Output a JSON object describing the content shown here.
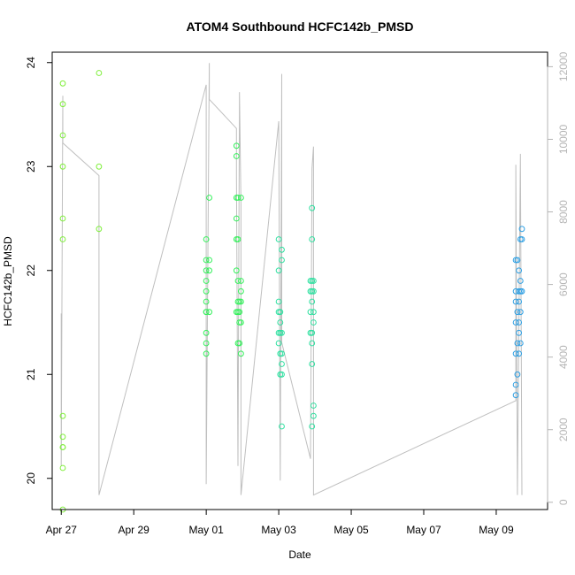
{
  "chart_data": {
    "type": "scatter",
    "title": "ATOM4 Southbound HCFC142b_PMSD",
    "xlabel": "Date",
    "ylabel": "HCFC142b_PMSD",
    "ylim": [
      19.7,
      24.1
    ],
    "y2lim": [
      -200,
      12400
    ],
    "xlim": [
      "2017-04-26 18:00",
      "2017-05-10 10:00"
    ],
    "x_ticks": [
      {
        "label": "Apr 27",
        "value": "2017-04-27"
      },
      {
        "label": "Apr 29",
        "value": "2017-04-29"
      },
      {
        "label": "May 01",
        "value": "2017-05-01"
      },
      {
        "label": "May 03",
        "value": "2017-05-03"
      },
      {
        "label": "May 05",
        "value": "2017-05-05"
      },
      {
        "label": "May 07",
        "value": "2017-05-07"
      },
      {
        "label": "May 09",
        "value": "2017-05-09"
      }
    ],
    "y_ticks": [
      "20",
      "21",
      "22",
      "23",
      "24"
    ],
    "y2_ticks": [
      "0",
      "2000",
      "4000",
      "6000",
      "8000",
      "10000",
      "12000"
    ],
    "grid": false,
    "legend": "none",
    "colors": {
      "axis": "#000000",
      "right_axis": "#b5b5b5",
      "altitude_line": "#bfbfbf",
      "early_points": "#7fef3a",
      "mid_points": "#33f05a",
      "late_mid_points": "#2ee0a0",
      "final_points": "#2d9fe3"
    },
    "series": [
      {
        "kind": "points",
        "color": "#7fef3a",
        "points": [
          {
            "x": "2017-04-27 01:00",
            "y": 23.8
          },
          {
            "x": "2017-04-27 01:00",
            "y": 23.6
          },
          {
            "x": "2017-04-27 01:00",
            "y": 23.3
          },
          {
            "x": "2017-04-27 01:00",
            "y": 23.0
          },
          {
            "x": "2017-04-27 01:00",
            "y": 22.5
          },
          {
            "x": "2017-04-27 01:00",
            "y": 22.3
          },
          {
            "x": "2017-04-27 01:00",
            "y": 20.6
          },
          {
            "x": "2017-04-27 01:00",
            "y": 20.4
          },
          {
            "x": "2017-04-27 01:00",
            "y": 20.3
          },
          {
            "x": "2017-04-27 01:00",
            "y": 20.3
          },
          {
            "x": "2017-04-27 01:00",
            "y": 20.1
          },
          {
            "x": "2017-04-27 01:00",
            "y": 19.7
          },
          {
            "x": "2017-04-28 01:00",
            "y": 23.9
          },
          {
            "x": "2017-04-28 01:00",
            "y": 23.0
          },
          {
            "x": "2017-04-28 01:00",
            "y": 22.4
          }
        ]
      },
      {
        "kind": "points",
        "color": "#33f05a",
        "points": [
          {
            "x": "2017-05-01 00:00",
            "y": 22.3
          },
          {
            "x": "2017-05-01 00:00",
            "y": 22.1
          },
          {
            "x": "2017-05-01 00:00",
            "y": 22.0
          },
          {
            "x": "2017-05-01 00:00",
            "y": 21.9
          },
          {
            "x": "2017-05-01 00:00",
            "y": 21.8
          },
          {
            "x": "2017-05-01 00:00",
            "y": 21.7
          },
          {
            "x": "2017-05-01 00:00",
            "y": 21.6
          },
          {
            "x": "2017-05-01 00:00",
            "y": 21.6
          },
          {
            "x": "2017-05-01 00:00",
            "y": 21.4
          },
          {
            "x": "2017-05-01 00:00",
            "y": 21.3
          },
          {
            "x": "2017-05-01 00:00",
            "y": 21.2
          },
          {
            "x": "2017-05-01 02:00",
            "y": 22.7
          },
          {
            "x": "2017-05-01 02:00",
            "y": 22.1
          },
          {
            "x": "2017-05-01 02:00",
            "y": 22.0
          },
          {
            "x": "2017-05-01 02:00",
            "y": 21.6
          },
          {
            "x": "2017-05-01 20:00",
            "y": 23.2
          },
          {
            "x": "2017-05-01 20:00",
            "y": 23.1
          },
          {
            "x": "2017-05-01 20:00",
            "y": 22.7
          },
          {
            "x": "2017-05-01 20:00",
            "y": 22.5
          },
          {
            "x": "2017-05-01 20:00",
            "y": 22.3
          },
          {
            "x": "2017-05-01 20:00",
            "y": 22.0
          },
          {
            "x": "2017-05-01 20:00",
            "y": 21.6
          },
          {
            "x": "2017-05-01 21:00",
            "y": 22.7
          },
          {
            "x": "2017-05-01 21:00",
            "y": 22.3
          },
          {
            "x": "2017-05-01 21:00",
            "y": 21.9
          },
          {
            "x": "2017-05-01 21:00",
            "y": 21.7
          },
          {
            "x": "2017-05-01 21:00",
            "y": 21.6
          },
          {
            "x": "2017-05-01 21:00",
            "y": 21.3
          },
          {
            "x": "2017-05-01 22:00",
            "y": 21.7
          },
          {
            "x": "2017-05-01 22:00",
            "y": 21.6
          },
          {
            "x": "2017-05-01 22:00",
            "y": 21.5
          },
          {
            "x": "2017-05-01 22:00",
            "y": 21.3
          },
          {
            "x": "2017-05-01 23:00",
            "y": 22.7
          },
          {
            "x": "2017-05-01 23:00",
            "y": 21.9
          },
          {
            "x": "2017-05-01 23:00",
            "y": 21.8
          },
          {
            "x": "2017-05-01 23:00",
            "y": 21.7
          },
          {
            "x": "2017-05-01 23:00",
            "y": 21.5
          },
          {
            "x": "2017-05-01 23:00",
            "y": 21.2
          }
        ]
      },
      {
        "kind": "points",
        "color": "#2ee0a0",
        "points": [
          {
            "x": "2017-05-03 00:00",
            "y": 22.3
          },
          {
            "x": "2017-05-03 00:00",
            "y": 22.0
          },
          {
            "x": "2017-05-03 00:00",
            "y": 21.7
          },
          {
            "x": "2017-05-03 00:00",
            "y": 21.6
          },
          {
            "x": "2017-05-03 00:00",
            "y": 21.4
          },
          {
            "x": "2017-05-03 00:00",
            "y": 21.3
          },
          {
            "x": "2017-05-03 01:00",
            "y": 21.6
          },
          {
            "x": "2017-05-03 01:00",
            "y": 21.5
          },
          {
            "x": "2017-05-03 01:00",
            "y": 21.4
          },
          {
            "x": "2017-05-03 01:00",
            "y": 21.2
          },
          {
            "x": "2017-05-03 01:00",
            "y": 21.0
          },
          {
            "x": "2017-05-03 02:00",
            "y": 22.2
          },
          {
            "x": "2017-05-03 02:00",
            "y": 22.1
          },
          {
            "x": "2017-05-03 02:00",
            "y": 21.4
          },
          {
            "x": "2017-05-03 02:00",
            "y": 21.2
          },
          {
            "x": "2017-05-03 02:00",
            "y": 21.1
          },
          {
            "x": "2017-05-03 02:00",
            "y": 21.0
          },
          {
            "x": "2017-05-03 02:00",
            "y": 20.5
          },
          {
            "x": "2017-05-03 21:00",
            "y": 21.9
          },
          {
            "x": "2017-05-03 21:00",
            "y": 21.8
          },
          {
            "x": "2017-05-03 21:00",
            "y": 21.6
          },
          {
            "x": "2017-05-03 21:00",
            "y": 21.4
          },
          {
            "x": "2017-05-03 22:00",
            "y": 22.6
          },
          {
            "x": "2017-05-03 22:00",
            "y": 22.3
          },
          {
            "x": "2017-05-03 22:00",
            "y": 21.9
          },
          {
            "x": "2017-05-03 22:00",
            "y": 21.8
          },
          {
            "x": "2017-05-03 22:00",
            "y": 21.7
          },
          {
            "x": "2017-05-03 22:00",
            "y": 21.4
          },
          {
            "x": "2017-05-03 22:00",
            "y": 21.3
          },
          {
            "x": "2017-05-03 22:00",
            "y": 21.1
          },
          {
            "x": "2017-05-03 22:00",
            "y": 20.5
          },
          {
            "x": "2017-05-03 23:00",
            "y": 21.9
          },
          {
            "x": "2017-05-03 23:00",
            "y": 21.8
          },
          {
            "x": "2017-05-03 23:00",
            "y": 21.6
          },
          {
            "x": "2017-05-03 23:00",
            "y": 21.5
          },
          {
            "x": "2017-05-03 23:00",
            "y": 20.7
          },
          {
            "x": "2017-05-03 23:00",
            "y": 20.6
          }
        ]
      },
      {
        "kind": "points",
        "color": "#2d9fe3",
        "points": [
          {
            "x": "2017-05-09 13:00",
            "y": 22.1
          },
          {
            "x": "2017-05-09 13:00",
            "y": 21.8
          },
          {
            "x": "2017-05-09 13:00",
            "y": 21.7
          },
          {
            "x": "2017-05-09 13:00",
            "y": 21.5
          },
          {
            "x": "2017-05-09 13:00",
            "y": 21.2
          },
          {
            "x": "2017-05-09 13:00",
            "y": 20.9
          },
          {
            "x": "2017-05-09 13:00",
            "y": 20.8
          },
          {
            "x": "2017-05-09 14:00",
            "y": 22.1
          },
          {
            "x": "2017-05-09 14:00",
            "y": 21.6
          },
          {
            "x": "2017-05-09 14:00",
            "y": 21.3
          },
          {
            "x": "2017-05-09 14:00",
            "y": 21.0
          },
          {
            "x": "2017-05-09 15:00",
            "y": 22.0
          },
          {
            "x": "2017-05-09 15:00",
            "y": 21.8
          },
          {
            "x": "2017-05-09 15:00",
            "y": 21.7
          },
          {
            "x": "2017-05-09 15:00",
            "y": 21.5
          },
          {
            "x": "2017-05-09 15:00",
            "y": 21.4
          },
          {
            "x": "2017-05-09 15:00",
            "y": 21.2
          },
          {
            "x": "2017-05-09 16:00",
            "y": 22.3
          },
          {
            "x": "2017-05-09 16:00",
            "y": 21.9
          },
          {
            "x": "2017-05-09 16:00",
            "y": 21.8
          },
          {
            "x": "2017-05-09 16:00",
            "y": 21.6
          },
          {
            "x": "2017-05-09 16:00",
            "y": 21.3
          },
          {
            "x": "2017-05-09 17:00",
            "y": 22.4
          },
          {
            "x": "2017-05-09 17:00",
            "y": 22.3
          },
          {
            "x": "2017-05-09 17:00",
            "y": 21.8
          }
        ]
      },
      {
        "kind": "line",
        "axis": "right",
        "color": "#bfbfbf",
        "points": [
          {
            "x": "2017-04-27 00:00",
            "y": 5200
          },
          {
            "x": "2017-04-27 00:00",
            "y": 1000
          },
          {
            "x": "2017-04-27 01:00",
            "y": 11200
          },
          {
            "x": "2017-04-27 01:00",
            "y": 9900
          },
          {
            "x": "2017-04-28 01:00",
            "y": 9000
          },
          {
            "x": "2017-04-28 01:00",
            "y": 5200
          },
          {
            "x": "2017-04-28 01:00",
            "y": 200
          },
          {
            "x": "2017-05-01 00:00",
            "y": 11500
          },
          {
            "x": "2017-05-01 00:00",
            "y": 500
          },
          {
            "x": "2017-05-01 02:00",
            "y": 12100
          },
          {
            "x": "2017-05-01 02:00",
            "y": 11100
          },
          {
            "x": "2017-05-01 20:00",
            "y": 10300
          },
          {
            "x": "2017-05-01 20:00",
            "y": 9000
          },
          {
            "x": "2017-05-01 21:00",
            "y": 1000
          },
          {
            "x": "2017-05-01 22:00",
            "y": 11300
          },
          {
            "x": "2017-05-01 23:00",
            "y": 8200
          },
          {
            "x": "2017-05-01 23:00",
            "y": 200
          },
          {
            "x": "2017-05-03 00:00",
            "y": 10500
          },
          {
            "x": "2017-05-03 01:00",
            "y": 600
          },
          {
            "x": "2017-05-03 02:00",
            "y": 11800
          },
          {
            "x": "2017-05-03 02:00",
            "y": 4400
          },
          {
            "x": "2017-05-03 21:00",
            "y": 1200
          },
          {
            "x": "2017-05-03 22:00",
            "y": 9200
          },
          {
            "x": "2017-05-03 23:00",
            "y": 9800
          },
          {
            "x": "2017-05-03 23:00",
            "y": 200
          },
          {
            "x": "2017-05-09 13:00",
            "y": 2800
          },
          {
            "x": "2017-05-09 13:00",
            "y": 9300
          },
          {
            "x": "2017-05-09 14:00",
            "y": 200
          },
          {
            "x": "2017-05-09 16:00",
            "y": 9600
          },
          {
            "x": "2017-05-09 17:00",
            "y": 200
          }
        ]
      }
    ]
  }
}
